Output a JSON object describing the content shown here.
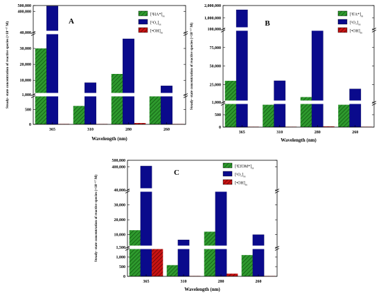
{
  "colors": {
    "green": "#2e9a2e",
    "navy": "#0a0a8c",
    "red": "#c81414"
  },
  "chart_data": [
    {
      "type": "bar",
      "panel_label": "A",
      "categories": [
        "365",
        "310",
        "280",
        "260"
      ],
      "xlabel": "Wavelength (nm)",
      "ylabel": "Steady- state concentration of reactive species (×10⁻¹⁷ M)",
      "y_ticks": [
        0,
        500,
        1000,
        10000,
        20000,
        30000,
        40000,
        400000,
        500000
      ],
      "y_tick_labels": [
        "0",
        "500",
        "1,000",
        "10,000",
        "20,000",
        "30,000",
        "40,000",
        "400,000",
        "500,000"
      ],
      "series": [
        {
          "name": "[³HA*]ss",
          "name_base": "[³HA*]",
          "name_sub": "ss",
          "color": "green",
          "hatch": true,
          "values": [
            30000,
            620,
            14000,
            1050
          ]
        },
        {
          "name": "[¹O₂]ss",
          "name_base": "[¹O₂]",
          "name_sub": "ss",
          "color": "navy",
          "hatch": false,
          "values": [
            490000,
            8500,
            36000,
            6500
          ]
        },
        {
          "name": "[•OH]ss",
          "name_base": "[•OH]",
          "name_sub": "ss",
          "color": "red",
          "hatch": true,
          "values": [
            15,
            5,
            45,
            8
          ]
        }
      ]
    },
    {
      "type": "bar",
      "panel_label": "B",
      "categories": [
        "365",
        "310",
        "280",
        "260"
      ],
      "xlabel": "Wavelength (nm)",
      "ylabel": "Steady- state concentration of reactive species (×10⁻¹⁷ M)",
      "y_ticks": [
        0,
        500,
        1000,
        25000,
        50000,
        75000,
        100000,
        1000000,
        2000000
      ],
      "y_tick_labels": [
        "0",
        "500",
        "1,000",
        "25,000",
        "50,000",
        "75,000",
        "100,000",
        "1,000,000",
        "2,000,000"
      ],
      "series": [
        {
          "name": "[³FA*]ss",
          "name_base": "[³FA*]",
          "name_sub": "ss",
          "color": "green",
          "hatch": true,
          "values": [
            30000,
            900,
            8000,
            900
          ]
        },
        {
          "name": "[¹O₂]ss",
          "name_base": "[¹O₂]",
          "name_sub": "ss",
          "color": "navy",
          "hatch": false,
          "values": [
            1650000,
            30000,
            107000,
            19000
          ]
        },
        {
          "name": "[•OH]ss",
          "name_base": "[•OH]",
          "name_sub": "ss",
          "color": "red",
          "hatch": true,
          "values": [
            10,
            5,
            30,
            5
          ]
        }
      ]
    },
    {
      "type": "bar",
      "panel_label": "C",
      "categories": [
        "365",
        "310",
        "280",
        "260"
      ],
      "xlabel": "Wavelength (nm)",
      "ylabel": "Steady- state concentration of reactive species (×10⁻¹⁷ M)",
      "y_ticks": [
        0,
        500,
        1000,
        1500,
        10000,
        20000,
        30000,
        40000,
        400000,
        500000
      ],
      "y_tick_labels": [
        "0",
        "500",
        "1,000",
        "1,500",
        "10,000",
        "20,000",
        "30,000",
        "40,000",
        "400,000",
        "500,000"
      ],
      "series": [
        {
          "name": "[³EfOM*]ss",
          "name_base": "[³EfOM*]",
          "name_sub": "ss",
          "color": "green",
          "hatch": true,
          "values": [
            13000,
            580,
            12000,
            1100
          ]
        },
        {
          "name": "[¹O₂]ss",
          "name_base": "[¹O₂]",
          "name_sub": "ss",
          "color": "navy",
          "hatch": false,
          "values": [
            410000,
            6500,
            42000,
            10000
          ]
        },
        {
          "name": "[•OH]ss",
          "name_base": "[•OH]",
          "name_sub": "ss",
          "color": "red",
          "hatch": true,
          "values": [
            1450,
            5,
            140,
            5
          ]
        }
      ]
    }
  ]
}
